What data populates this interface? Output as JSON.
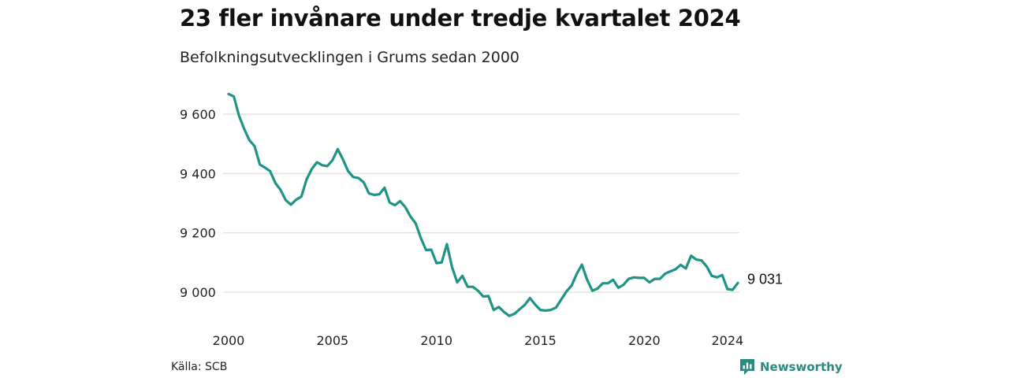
{
  "chart_data": {
    "type": "line",
    "title": "23 fler invånare under tredje kvartalet 2024",
    "subtitle": "Befolkningsutvecklingen i Grums sedan 2000",
    "xlabel": "",
    "ylabel": "",
    "xlim": [
      2000.0,
      2024.5
    ],
    "ylim": [
      8900,
      9700
    ],
    "yticks": [
      9000,
      9200,
      9400,
      9600
    ],
    "ytick_labels": [
      "9 000",
      "9 200",
      "9 400",
      "9 600"
    ],
    "xticks": [
      2000,
      2005,
      2010,
      2015,
      2020,
      2024
    ],
    "xtick_labels": [
      "2000",
      "2005",
      "2010",
      "2015",
      "2020",
      "2024"
    ],
    "grid": "horizontal",
    "line_color": "#1f9486",
    "end_label": "9 031",
    "series": [
      {
        "x": [
          2000.0,
          2000.25,
          2000.5,
          2000.75,
          2001.0,
          2001.25,
          2001.5,
          2001.75,
          2002.0,
          2002.25,
          2002.5,
          2002.75,
          2003.0,
          2003.25,
          2003.5,
          2003.75,
          2004.0,
          2004.25,
          2004.5,
          2004.75,
          2005.0,
          2005.25,
          2005.5,
          2005.75,
          2006.0,
          2006.25,
          2006.5,
          2006.75,
          2007.0,
          2007.25,
          2007.5,
          2007.75,
          2008.0,
          2008.25,
          2008.5,
          2008.75,
          2009.0,
          2009.25,
          2009.5,
          2009.75,
          2010.0,
          2010.25,
          2010.5,
          2010.75,
          2011.0,
          2011.25,
          2011.5,
          2011.75,
          2012.0,
          2012.25,
          2012.5,
          2012.75,
          2013.0,
          2013.25,
          2013.5,
          2013.75,
          2014.0,
          2014.25,
          2014.5,
          2014.75,
          2015.0,
          2015.25,
          2015.5,
          2015.75,
          2016.0,
          2016.25,
          2016.5,
          2016.75,
          2017.0,
          2017.25,
          2017.5,
          2017.75,
          2018.0,
          2018.25,
          2018.5,
          2018.75,
          2019.0,
          2019.25,
          2019.5,
          2019.75,
          2020.0,
          2020.25,
          2020.5,
          2020.75,
          2021.0,
          2021.25,
          2021.5,
          2021.75,
          2022.0,
          2022.25,
          2022.5,
          2022.75,
          2023.0,
          2023.25,
          2023.5,
          2023.75,
          2024.0,
          2024.25,
          2024.5
        ],
        "values": [
          9668,
          9660,
          9595,
          9550,
          9512,
          9492,
          9430,
          9420,
          9408,
          9368,
          9345,
          9310,
          9295,
          9312,
          9322,
          9380,
          9415,
          9438,
          9428,
          9425,
          9445,
          9482,
          9448,
          9408,
          9388,
          9385,
          9370,
          9333,
          9328,
          9330,
          9352,
          9302,
          9293,
          9307,
          9287,
          9255,
          9232,
          9182,
          9142,
          9143,
          9098,
          9100,
          9162,
          9085,
          9033,
          9055,
          9018,
          9018,
          9005,
          8985,
          8987,
          8940,
          8950,
          8933,
          8920,
          8927,
          8942,
          8957,
          8980,
          8958,
          8940,
          8938,
          8940,
          8948,
          8975,
          9002,
          9022,
          9062,
          9093,
          9042,
          9005,
          9012,
          9030,
          9030,
          9042,
          9015,
          9025,
          9045,
          9050,
          9048,
          9048,
          9033,
          9045,
          9045,
          9062,
          9070,
          9077,
          9092,
          9080,
          9123,
          9110,
          9107,
          9087,
          9055,
          9050,
          9058,
          9010,
          9008,
          9031
        ]
      }
    ]
  },
  "footer": {
    "source": "Källa: SCB",
    "brand": "Newsworthy"
  }
}
